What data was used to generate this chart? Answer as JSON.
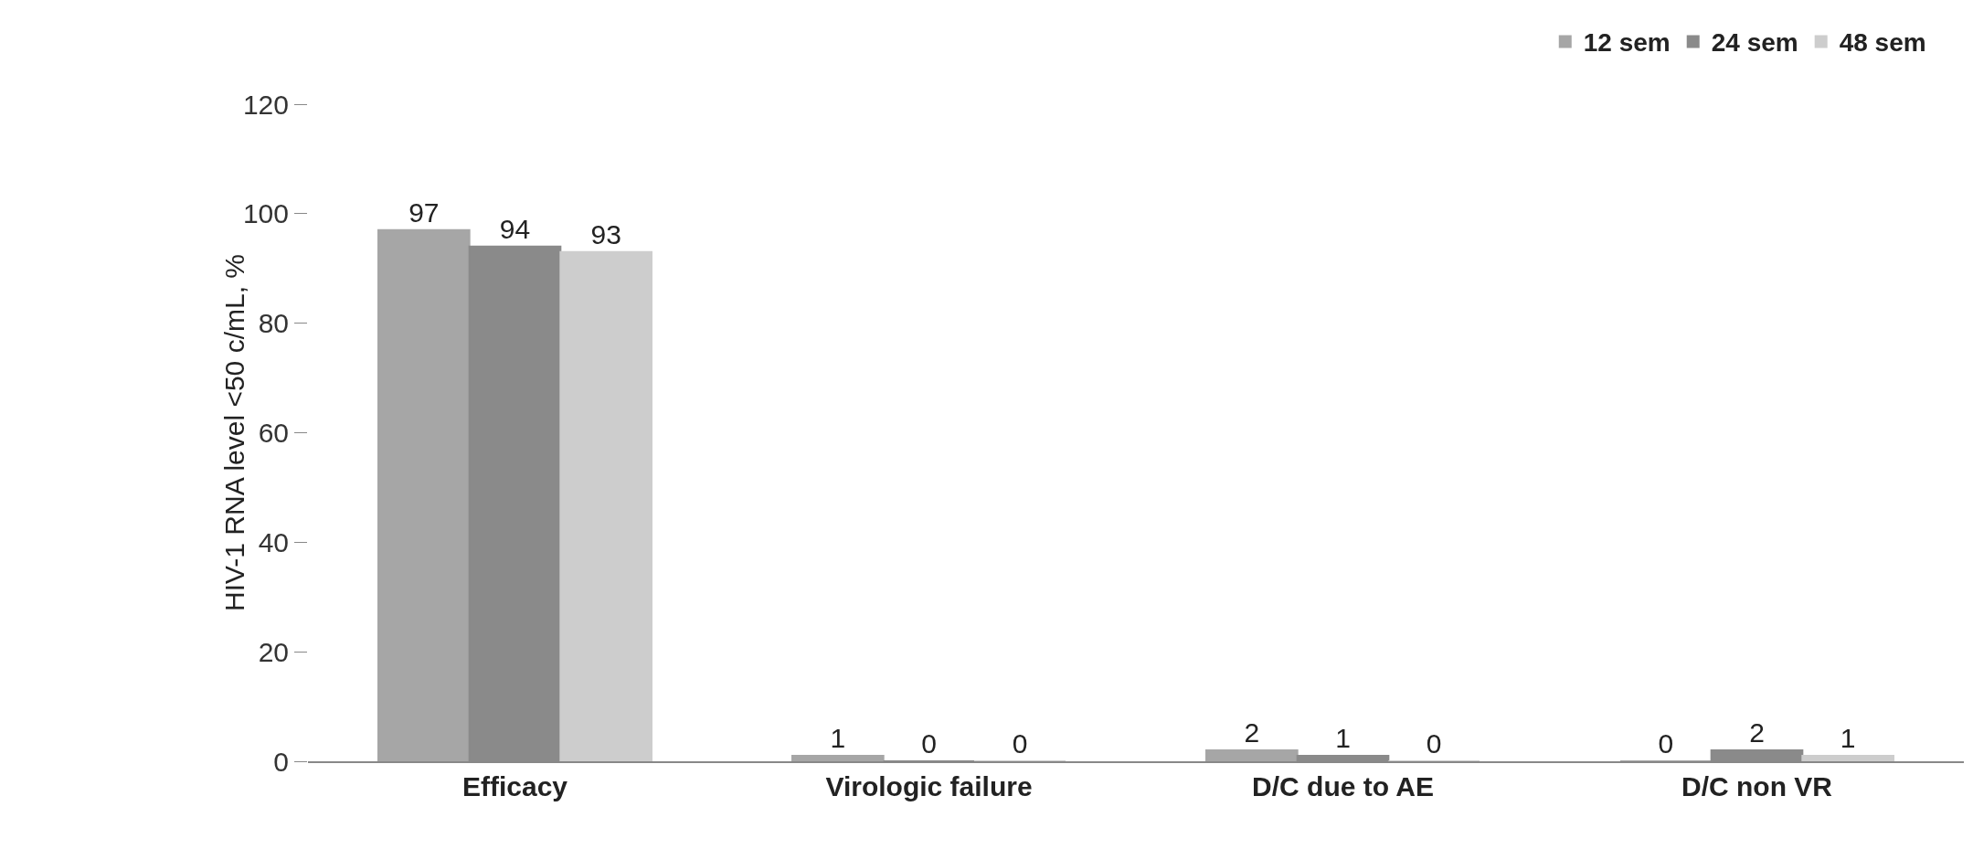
{
  "chart_data": {
    "type": "bar",
    "ylabel": "HIV-1 RNA level <50 c/mL, %",
    "categories": [
      "Efficacy",
      "Virologic failure",
      "D/C due to AE",
      "D/C non VR"
    ],
    "series": [
      {
        "name": "12 sem",
        "color": "#a6a6a6",
        "values": [
          97,
          1,
          2,
          0
        ]
      },
      {
        "name": "24 sem",
        "color": "#8a8a8a",
        "values": [
          94,
          0,
          1,
          2
        ]
      },
      {
        "name": "48 sem",
        "color": "#cdcdcd",
        "values": [
          93,
          0,
          0,
          1
        ]
      }
    ],
    "ylim": [
      0,
      120
    ],
    "yticks": [
      0,
      20,
      40,
      60,
      80,
      100,
      120
    ],
    "data_labels": true,
    "legend": "top right"
  }
}
